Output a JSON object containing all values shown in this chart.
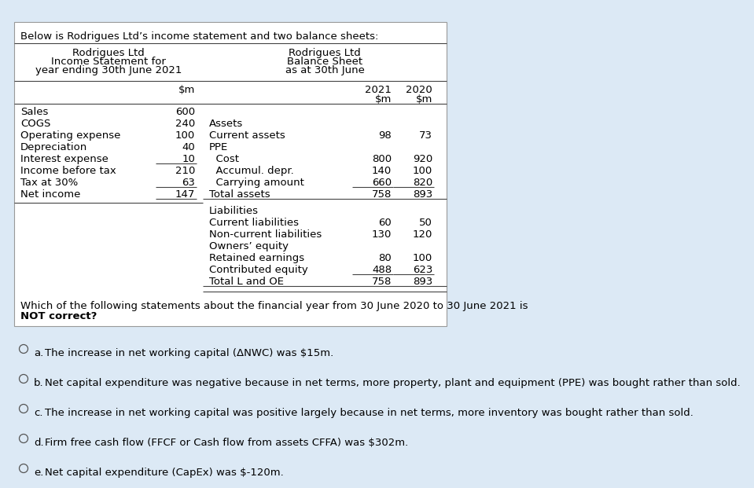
{
  "bg_color": "#dce9f5",
  "table_bg": "#ffffff",
  "intro_text": "Below is Rodrigues Ltd’s income statement and two balance sheets:",
  "is_title": [
    "Rodrigues Ltd",
    "Income Statement for",
    "year ending 30th June 2021"
  ],
  "bs_title": [
    "Rodrigues Ltd",
    "Balance Sheet",
    "as at 30th June"
  ],
  "is_rows": [
    [
      "Sales",
      "600",
      false
    ],
    [
      "COGS",
      "240",
      false
    ],
    [
      "Operating expense",
      "100",
      false
    ],
    [
      "Depreciation",
      "40",
      false
    ],
    [
      "Interest expense",
      "10",
      true
    ],
    [
      "Income before tax",
      "210",
      false
    ],
    [
      "Tax at 30%",
      "63",
      true
    ],
    [
      "Net income",
      "147",
      true
    ]
  ],
  "bs_ppe_rows": [
    [
      "  Cost",
      "800",
      "920",
      false
    ],
    [
      "  Accumul. depr.",
      "140",
      "100",
      false
    ],
    [
      "  Carrying amount",
      "660",
      "820",
      true
    ],
    [
      "Total assets",
      "758",
      "893",
      true
    ]
  ],
  "bs_liab_rows": [
    [
      "Current liabilities",
      "60",
      "50",
      false
    ],
    [
      "Non-current liabilities",
      "130",
      "120",
      false
    ],
    [
      "Owners’ equity",
      "",
      "",
      false
    ],
    [
      "Retained earnings",
      "80",
      "100",
      false
    ],
    [
      "Contributed equity",
      "488",
      "623",
      true
    ],
    [
      "Total L and OE",
      "758",
      "893",
      true
    ]
  ],
  "options": [
    [
      "a.",
      "The increase in net working capital (ΔNWC) was $15m."
    ],
    [
      "b.",
      "Net capital expenditure was negative because in net terms, more property, plant and equipment (PPE) was bought rather than sold."
    ],
    [
      "c.",
      "The increase in net working capital was positive largely because in net terms, more inventory was bought rather than sold."
    ],
    [
      "d.",
      "Firm free cash flow (FFCF or Cash flow from assets CFFA) was $302m."
    ],
    [
      "e.",
      "Net capital expenditure (CapEx) was $-120m."
    ]
  ],
  "fs": 9.5,
  "ff": "DejaVu Sans",
  "line_color": "#444444",
  "table_border": "#999999"
}
